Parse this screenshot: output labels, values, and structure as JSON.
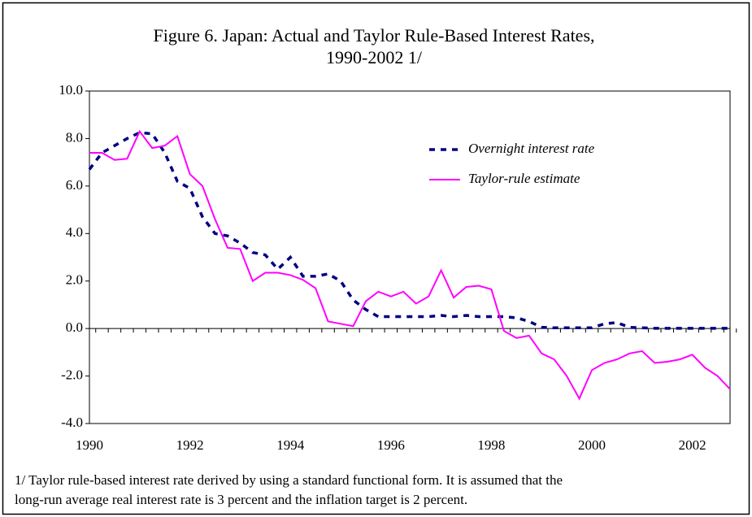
{
  "chart_data": {
    "type": "line",
    "title": [
      "Figure 6. Japan: Actual and Taylor Rule-Based Interest Rates,",
      "1990-2002 1/"
    ],
    "footnote": [
      "1/ Taylor rule-based interest rate derived by using a standard functional form. It is assumed that the",
      "long-run average real interest rate is 3 percent and the inflation target is 2 percent."
    ],
    "categories": [
      "1990",
      null,
      null,
      null,
      null,
      null,
      null,
      null,
      "1992",
      null,
      null,
      null,
      null,
      null,
      null,
      null,
      "1994",
      null,
      null,
      null,
      null,
      null,
      null,
      null,
      "1996",
      null,
      null,
      null,
      null,
      null,
      null,
      null,
      "1998",
      null,
      null,
      null,
      null,
      null,
      null,
      null,
      "2000",
      null,
      null,
      null,
      null,
      null,
      null,
      null,
      "2002",
      null,
      null,
      null
    ],
    "series": [
      {
        "name": "Overnight interest rate",
        "color": "#000080",
        "dashed": true,
        "values": [
          6.7,
          7.4,
          7.7,
          8.0,
          8.25,
          8.2,
          7.4,
          6.2,
          5.9,
          4.7,
          4.0,
          3.9,
          3.6,
          3.2,
          3.1,
          2.5,
          3.0,
          2.2,
          2.2,
          2.3,
          2.0,
          1.2,
          0.8,
          0.5,
          0.5,
          0.5,
          0.5,
          0.5,
          0.55,
          0.5,
          0.55,
          0.5,
          0.5,
          0.5,
          0.45,
          0.3,
          0.05,
          0.03,
          0.03,
          0.03,
          0.03,
          0.2,
          0.25,
          0.05,
          0.03,
          0.01,
          0.01,
          0.01,
          0.01,
          0.01,
          0.01,
          0.01
        ]
      },
      {
        "name": "Taylor-rule estimate",
        "color": "#ff00ff",
        "dashed": false,
        "values": [
          7.4,
          7.4,
          7.1,
          7.15,
          8.3,
          7.6,
          7.7,
          8.1,
          6.5,
          6.0,
          4.6,
          3.4,
          3.35,
          2.0,
          2.35,
          2.35,
          2.25,
          2.05,
          1.7,
          0.3,
          0.2,
          0.1,
          1.15,
          1.55,
          1.35,
          1.55,
          1.05,
          1.35,
          2.45,
          1.3,
          1.75,
          1.8,
          1.65,
          -0.1,
          -0.4,
          -0.3,
          -1.05,
          -1.3,
          -2.0,
          -2.95,
          -1.75,
          -1.45,
          -1.3,
          -1.05,
          -0.95,
          -1.45,
          -1.4,
          -1.3,
          -1.1,
          -1.65,
          -2.0,
          -2.55
        ]
      }
    ],
    "ylim": [
      -4,
      10
    ],
    "yticks": [
      {
        "value": -4,
        "label": "-4.0"
      },
      {
        "value": -2,
        "label": "-2.0"
      },
      {
        "value": 0,
        "label": "0.0"
      },
      {
        "value": 2,
        "label": "2.0"
      },
      {
        "value": 4,
        "label": "4.0"
      },
      {
        "value": 6,
        "label": "6.0"
      },
      {
        "value": 8,
        "label": "8.0"
      },
      {
        "value": 10,
        "label": "10.0"
      }
    ],
    "grid": false
  }
}
